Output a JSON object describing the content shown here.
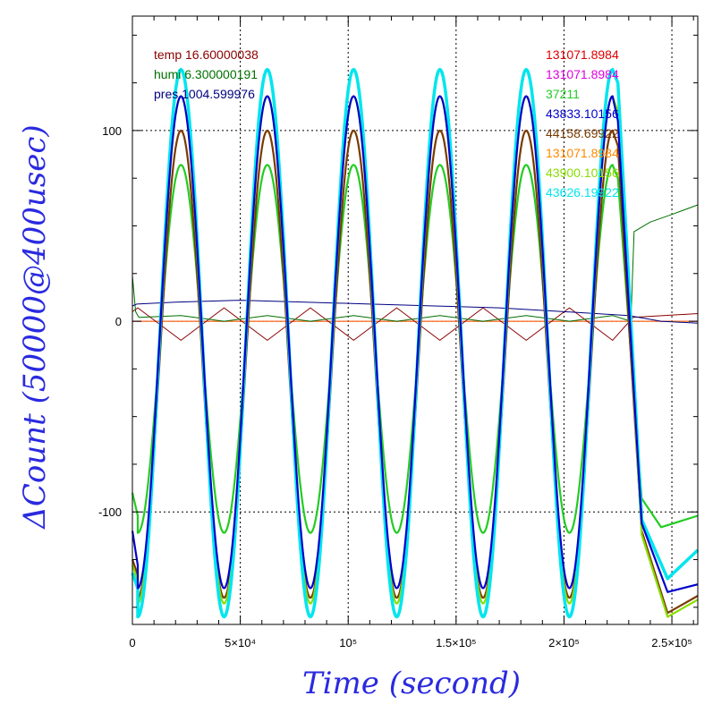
{
  "chart_data": {
    "type": "line",
    "xlabel": "Time (second)",
    "ylabel": "ΔCount (50000@400usec)",
    "xlim": [
      0,
      262000
    ],
    "ylim": [
      -159,
      160
    ],
    "x_ticks": [
      {
        "value": 0,
        "label": "0"
      },
      {
        "value": 50000,
        "label": "5×10⁴"
      },
      {
        "value": 100000,
        "label": "10⁵"
      },
      {
        "value": 150000,
        "label": "1.5×10⁵"
      },
      {
        "value": 200000,
        "label": "2×10⁵"
      },
      {
        "value": 250000,
        "label": "2.5×10⁵"
      }
    ],
    "y_ticks": [
      {
        "value": 100,
        "label": "100"
      },
      {
        "value": 0,
        "label": "0"
      },
      {
        "value": -100,
        "label": "-100"
      }
    ],
    "grid": true,
    "legend_left": [
      {
        "text": "temp 16.60000038",
        "color": "#8b0000"
      },
      {
        "text": "humi 6.300000191",
        "color": "#007000"
      },
      {
        "text": "pres 1004.599976",
        "color": "#000080"
      }
    ],
    "legend_right": [
      {
        "text": "131071.8984",
        "color": "#e00000"
      },
      {
        "text": "131071.8984",
        "color": "#e000e0"
      },
      {
        "text": "37211",
        "color": "#22cc22"
      },
      {
        "text": "43833.10156",
        "color": "#0000cc"
      },
      {
        "text": "44158.69922",
        "color": "#7a3a00"
      },
      {
        "text": "131071.8984",
        "color": "#ff8800"
      },
      {
        "text": "43900.10156",
        "color": "#88dd00"
      },
      {
        "text": "43626.19922",
        "color": "#00e5ee"
      }
    ],
    "oscillation": {
      "first_peak_time": 22500,
      "period": 40000,
      "last_peak_time": 222500
    },
    "series": [
      {
        "color": "#e00000",
        "y": [
          0,
          0
        ]
      },
      {
        "color": "#e000e0",
        "y": [
          0,
          0
        ]
      },
      {
        "color": "#ff8800",
        "y": [
          0,
          0
        ]
      },
      {
        "color": "#8b0000",
        "t": [
          0,
          2500,
          22500,
          42500,
          62500,
          82500,
          102500,
          122500,
          142500,
          162500,
          182500,
          202500,
          222500,
          232000,
          262000
        ],
        "y": [
          5,
          7,
          -10,
          7,
          -10,
          7,
          -10,
          7,
          -10,
          7,
          -10,
          7,
          -10,
          2,
          4
        ]
      },
      {
        "color": "#007000",
        "t": [
          0,
          1500,
          3000,
          22500,
          42500,
          62500,
          82500,
          102500,
          122500,
          142500,
          162500,
          182500,
          202500,
          222500,
          231000,
          232500,
          240000,
          250000,
          262000
        ],
        "y": [
          24,
          5,
          2,
          3,
          0,
          3,
          0,
          3,
          0,
          3,
          0,
          3,
          0,
          3,
          0,
          47,
          52,
          56,
          61
        ]
      },
      {
        "color": "#000080",
        "t": [
          0,
          2000,
          20000,
          50000,
          80000,
          110000,
          140000,
          170000,
          200000,
          230000,
          245000,
          262000
        ],
        "y": [
          8,
          9,
          10,
          11,
          10,
          9,
          8,
          7,
          5,
          3,
          0,
          -1
        ]
      },
      {
        "color": "#22cc22",
        "amp": 82,
        "trough": -111,
        "start": [
          {
            "t": 0,
            "y": -90
          },
          {
            "t": 2500,
            "y": -102
          }
        ],
        "tail": [
          {
            "t": 225000,
            "y": 75
          },
          {
            "t": 236000,
            "y": -93
          },
          {
            "t": 245000,
            "y": -108
          },
          {
            "t": 262000,
            "y": -102
          }
        ]
      },
      {
        "color": "#7a3a00",
        "amp": 100,
        "trough": -145,
        "start": [
          {
            "t": 0,
            "y": -125
          },
          {
            "t": 2500,
            "y": -133
          }
        ],
        "tail": [
          {
            "t": 225000,
            "y": 92
          },
          {
            "t": 236000,
            "y": -110
          },
          {
            "t": 248000,
            "y": -153
          },
          {
            "t": 262000,
            "y": -144
          }
        ]
      },
      {
        "color": "#88dd00",
        "amp": 118,
        "trough": -148,
        "start": [
          {
            "t": 0,
            "y": -128
          },
          {
            "t": 2500,
            "y": -136
          }
        ],
        "tail": [
          {
            "t": 225000,
            "y": 110
          },
          {
            "t": 236000,
            "y": -112
          },
          {
            "t": 248000,
            "y": -155
          },
          {
            "t": 262000,
            "y": -146
          }
        ]
      },
      {
        "color": "#00e5ee",
        "amp": 132,
        "trough": -155,
        "start": [
          {
            "t": 0,
            "y": -132
          },
          {
            "t": 2500,
            "y": -140
          }
        ],
        "tail": [
          {
            "t": 225000,
            "y": 125
          },
          {
            "t": 236000,
            "y": -104
          },
          {
            "t": 248000,
            "y": -135
          },
          {
            "t": 262000,
            "y": -120
          }
        ]
      },
      {
        "color": "#0000cc",
        "amp": 118,
        "trough": -140,
        "start": [
          {
            "t": 0,
            "y": -110
          },
          {
            "t": 2500,
            "y": -128
          }
        ],
        "tail": [
          {
            "t": 225000,
            "y": 105
          },
          {
            "t": 236000,
            "y": -106
          },
          {
            "t": 248000,
            "y": -142
          },
          {
            "t": 262000,
            "y": -138
          }
        ]
      }
    ]
  }
}
